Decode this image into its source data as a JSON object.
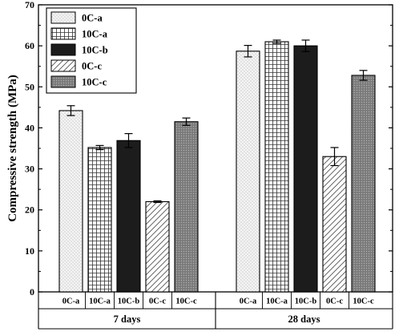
{
  "chart_data": {
    "type": "bar",
    "title": "",
    "xlabel": "",
    "ylabel": "Compressive strength (MPa)",
    "ylim": [
      0,
      70
    ],
    "yticks": [
      0,
      10,
      20,
      30,
      40,
      50,
      60,
      70
    ],
    "grid": false,
    "legend_position": "top-left",
    "groups": [
      {
        "label": "7 days",
        "bars": [
          {
            "label": "0C-a",
            "series": "0C-a",
            "value": 44.2,
            "error": 1.2
          },
          {
            "label": "10C-a",
            "series": "10C-a",
            "value": 35.2,
            "error": 0.5
          },
          {
            "label": "10C-b",
            "series": "10C-b",
            "value": 36.9,
            "error": 1.7
          },
          {
            "label": "0C-c",
            "series": "0C-c",
            "value": 22.0,
            "error": 0.2
          },
          {
            "label": "10C-c",
            "series": "10C-c",
            "value": 41.5,
            "error": 0.9
          }
        ]
      },
      {
        "label": "28 days",
        "bars": [
          {
            "label": "0C-a",
            "series": "0C-a",
            "value": 58.7,
            "error": 1.4
          },
          {
            "label": "10C-a",
            "series": "10C-a",
            "value": 61.0,
            "error": 0.4
          },
          {
            "label": "10C-b",
            "series": "10C-b",
            "value": 60.0,
            "error": 1.4
          },
          {
            "label": "0C-c",
            "series": "0C-c",
            "value": 33.0,
            "error": 2.2
          },
          {
            "label": "10C-c",
            "series": "10C-c",
            "value": 52.8,
            "error": 1.2
          }
        ]
      }
    ],
    "series": [
      {
        "name": "0C-a",
        "pattern": "dots",
        "color": "#f2f2f2"
      },
      {
        "name": "10C-a",
        "pattern": "grid",
        "color": "#ffffff"
      },
      {
        "name": "10C-b",
        "pattern": "solid",
        "color": "#1c1c1c"
      },
      {
        "name": "0C-c",
        "pattern": "diagonal-hatch",
        "color": "#ffffff"
      },
      {
        "name": "10C-c",
        "pattern": "dense-crosshatch",
        "color": "#8c8c8c"
      }
    ]
  }
}
